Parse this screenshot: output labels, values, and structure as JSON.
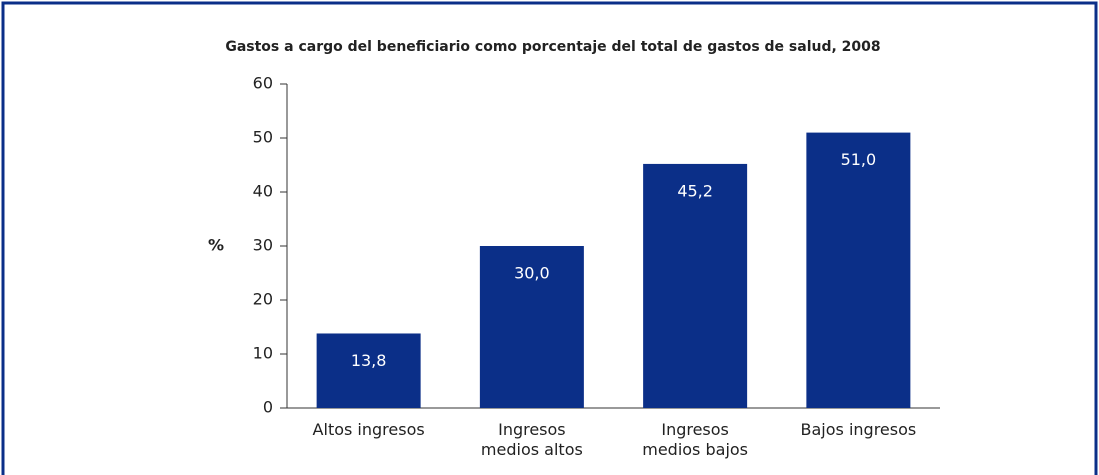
{
  "chart_data": {
    "type": "bar",
    "title": "Gastos a cargo del beneficiario como porcentaje del total de gastos de salud, 2008",
    "ylabel": "%",
    "categories": [
      "Altos ingresos",
      "Ingresos medios altos",
      "Ingresos medios bajos",
      "Bajos ingresos"
    ],
    "values": [
      13.8,
      30.0,
      45.2,
      51.0
    ],
    "value_labels": [
      "13,8",
      "30,0",
      "45,2",
      "51,0"
    ],
    "color": "#0b2f88",
    "ylim": [
      0,
      60
    ],
    "yticks": [
      0,
      10,
      20,
      30,
      40,
      50,
      60
    ],
    "grid": false
  }
}
